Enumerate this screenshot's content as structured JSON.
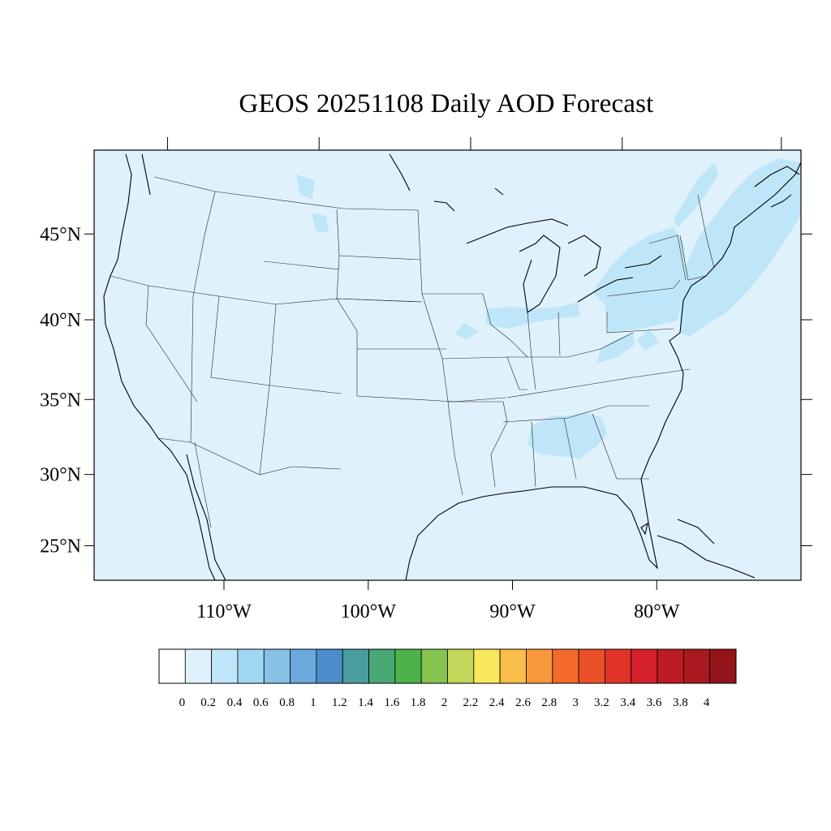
{
  "title": "GEOS 20251108 Daily AOD Forecast",
  "map": {
    "projection": "Mercator",
    "lon_range": [
      -119,
      -70
    ],
    "lat_range": [
      22.5,
      49.5
    ],
    "lat_ticks": [
      {
        "value": 45,
        "label": "45°N"
      },
      {
        "value": 40,
        "label": "40°N"
      },
      {
        "value": 35,
        "label": "35°N"
      },
      {
        "value": 30,
        "label": "30°N"
      },
      {
        "value": 25,
        "label": "25°N"
      }
    ],
    "lon_ticks": [
      {
        "value": -110,
        "label": "110°W"
      },
      {
        "value": -100,
        "label": "100°W"
      },
      {
        "value": -90,
        "label": "90°W"
      },
      {
        "value": -80,
        "label": "80°W"
      }
    ],
    "background_color": "#dff2fb",
    "background_level": "0.2",
    "elevated_color": "#bfe6f8",
    "elevated_level": "0.4",
    "elevated_regions": [
      "Northeast",
      "Ohio Valley",
      "Southeast (Alabama/Georgia)",
      "Western Atlantic",
      "Southern Quebec"
    ]
  },
  "colorbar": {
    "labels": [
      "0",
      "0.2",
      "0.4",
      "0.6",
      "0.8",
      "1",
      "1.2",
      "1.4",
      "1.6",
      "1.8",
      "2",
      "2.2",
      "2.4",
      "2.6",
      "2.8",
      "3",
      "3.2",
      "3.4",
      "3.6",
      "3.8",
      "4"
    ],
    "colors": [
      "#ffffff",
      "#dff2fb",
      "#bfe6f8",
      "#a0d8f3",
      "#86c1e6",
      "#6aa8dd",
      "#4a8dca",
      "#4a9d9e",
      "#48a773",
      "#4bb34a",
      "#87c34f",
      "#c3d65a",
      "#f7e85c",
      "#f9bd4a",
      "#f7983d",
      "#f36a2c",
      "#eb5129",
      "#e03428",
      "#d3202a",
      "#bd1b24",
      "#a9181f",
      "#941519"
    ]
  }
}
